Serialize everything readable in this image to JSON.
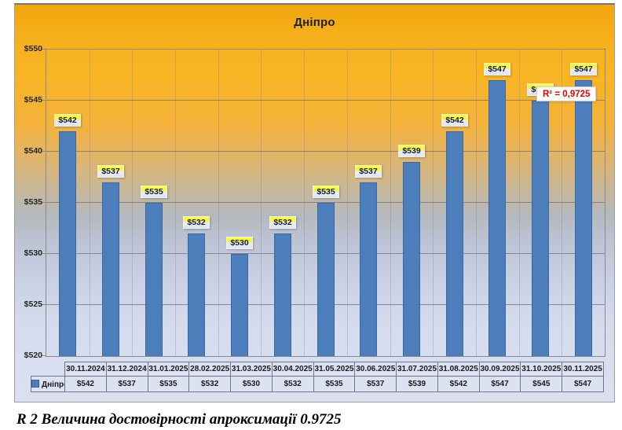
{
  "chart_data": {
    "type": "bar",
    "title": "Дніпро",
    "categories": [
      "30.11.2024",
      "31.12.2024",
      "31.01.2025",
      "28.02.2025",
      "31.03.2025",
      "30.04.2025",
      "31.05.2025",
      "30.06.2025",
      "31.07.2025",
      "31.08.2025",
      "30.09.2025",
      "31.10.2025",
      "30.11.2025"
    ],
    "series": [
      {
        "name": "Дніпро",
        "values": [
          542,
          537,
          535,
          532,
          530,
          532,
          535,
          537,
          539,
          542,
          547,
          545,
          547
        ]
      }
    ],
    "data_labels": [
      "$542",
      "$537",
      "$535",
      "$532",
      "$530",
      "$532",
      "$535",
      "$537",
      "$539",
      "$542",
      "$547",
      "$545",
      "$547"
    ],
    "y_tick_labels": [
      "$550",
      "$545",
      "$540",
      "$535",
      "$530",
      "$525",
      "$520"
    ],
    "ylim": [
      520,
      550
    ],
    "ytick_step": 5,
    "grid": true,
    "bar_color": "#4d7ebc",
    "trendline": {
      "kind": "polynomial",
      "degree": 3,
      "color": "#cb3a2f",
      "r2_label": "R² = 0,9725",
      "r2_value": 0.9725
    },
    "legend_position": "table-left"
  },
  "table": {
    "legend_label": "Дніпро"
  },
  "caption": "R 2 Величина достовірності апроксимації 0.9725"
}
